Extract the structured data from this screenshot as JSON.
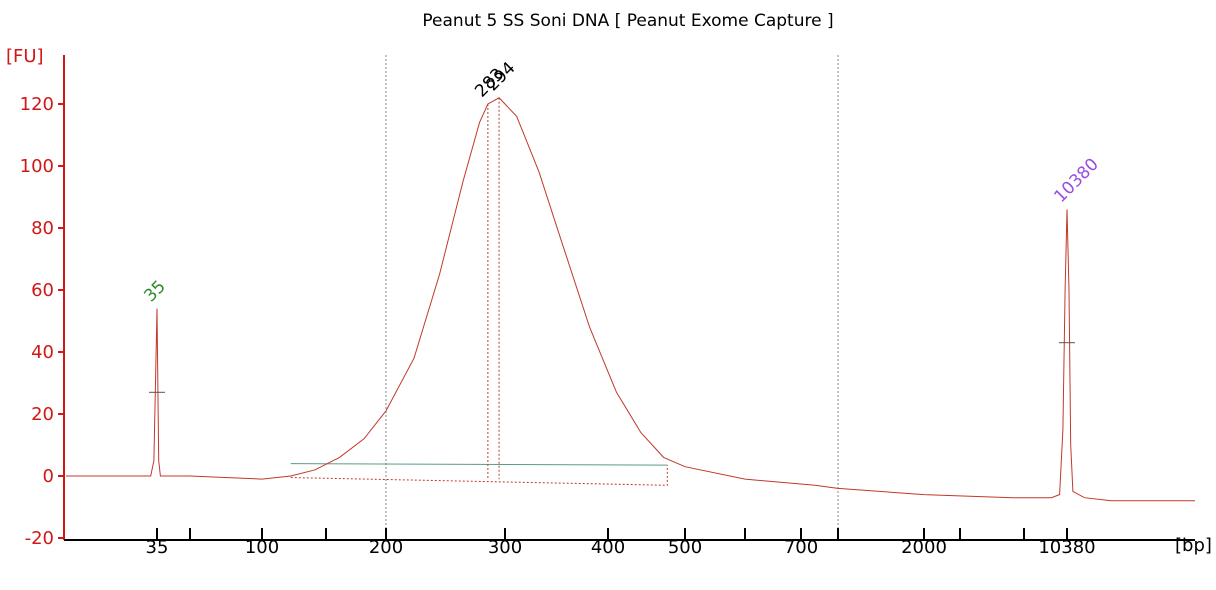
{
  "chart_data": {
    "type": "line",
    "title": "Peanut 5 SS Soni DNA  [ Peanut Exome Capture ]",
    "ylabel": "[FU]",
    "xlabel": "[bp]",
    "ylim": [
      -20,
      130
    ],
    "y_ticks": [
      -20,
      0,
      20,
      40,
      60,
      80,
      100,
      120
    ],
    "x_ticks": [
      {
        "label": "35",
        "value": 35
      },
      {
        "label": "",
        "value": 60
      },
      {
        "label": "100",
        "value": 100
      },
      {
        "label": "",
        "value": 150
      },
      {
        "label": "200",
        "value": 200
      },
      {
        "label": "300",
        "value": 300
      },
      {
        "label": "400",
        "value": 400
      },
      {
        "label": "500",
        "value": 500
      },
      {
        "label": "",
        "value": 600
      },
      {
        "label": "700",
        "value": 700
      },
      {
        "label": "",
        "value": 1000
      },
      {
        "label": "2000",
        "value": 2000
      },
      {
        "label": "",
        "value": 3000
      },
      {
        "label": "",
        "value": 7000
      },
      {
        "label": "10380",
        "value": 10380
      }
    ],
    "vertical_gridlines_bp": [
      200,
      1000
    ],
    "series": [
      {
        "color": "#c0392b",
        "points": [
          [
            15,
            0
          ],
          [
            33,
            0
          ],
          [
            34,
            5
          ],
          [
            35,
            54
          ],
          [
            36,
            5
          ],
          [
            37,
            0
          ],
          [
            60,
            0
          ],
          [
            100,
            -1
          ],
          [
            120,
            0
          ],
          [
            140,
            2
          ],
          [
            160,
            6
          ],
          [
            180,
            12
          ],
          [
            200,
            21
          ],
          [
            220,
            38
          ],
          [
            240,
            65
          ],
          [
            260,
            95
          ],
          [
            275,
            114
          ],
          [
            283,
            120
          ],
          [
            294,
            122
          ],
          [
            310,
            116
          ],
          [
            330,
            98
          ],
          [
            350,
            77
          ],
          [
            380,
            48
          ],
          [
            410,
            27
          ],
          [
            440,
            14
          ],
          [
            470,
            6
          ],
          [
            500,
            3
          ],
          [
            600,
            -1
          ],
          [
            800,
            -3
          ],
          [
            1000,
            -4
          ],
          [
            2000,
            -6
          ],
          [
            6000,
            -7
          ],
          [
            9000,
            -7
          ],
          [
            9700,
            -6
          ],
          [
            10000,
            15
          ],
          [
            10200,
            60
          ],
          [
            10380,
            86
          ],
          [
            10550,
            60
          ],
          [
            10700,
            10
          ],
          [
            10900,
            -5
          ],
          [
            12000,
            -7
          ],
          [
            15000,
            -8
          ],
          [
            30000,
            -8
          ]
        ]
      }
    ],
    "peaks": [
      {
        "label": "35",
        "x": 35,
        "y": 54,
        "color": "#2e8b2e"
      },
      {
        "label": "283",
        "x": 283,
        "y": 120,
        "color": "#000000"
      },
      {
        "label": "294",
        "x": 294,
        "y": 122,
        "color": "#000000"
      },
      {
        "label": "10380",
        "x": 10380,
        "y": 86,
        "color": "#9b4de0"
      }
    ],
    "region": {
      "from_bp": 120,
      "to_bp": 475,
      "baseline_start": -0.5,
      "baseline_end": -3,
      "level": 4
    },
    "colors": {
      "axis_y": "#d01818",
      "axis_x": "#000000",
      "trace": "#c0392b",
      "region_line": "#5a9a8a",
      "grid": "#888888"
    }
  }
}
